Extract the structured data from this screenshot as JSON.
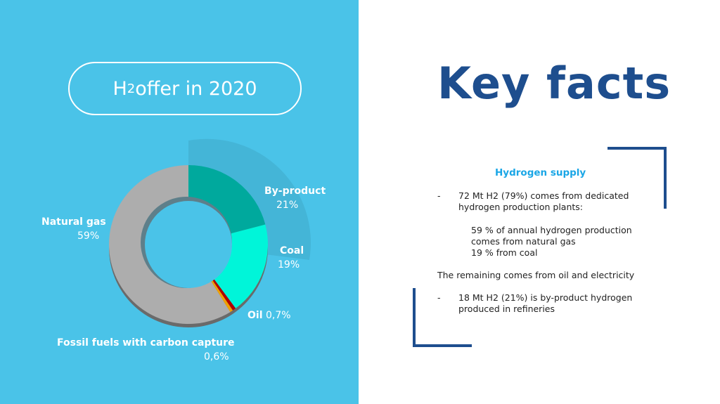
{
  "left": {
    "title_main": "H",
    "title_sub": "2",
    "title_rest": " offer in 2020"
  },
  "chart_data": {
    "type": "pie",
    "donut": true,
    "title": "H2 offer in 2020",
    "categories": [
      "By-product",
      "Coal",
      "Oil",
      "Fossil fuels with carbon capture",
      "Natural gas"
    ],
    "values": [
      21,
      19,
      0.7,
      0.6,
      59
    ],
    "value_labels": [
      "21%",
      "19%",
      "0,7%",
      "0,6%",
      "59%"
    ],
    "colors": [
      "#00a99d",
      "#00f5d9",
      "#b00000",
      "#f0a000",
      "#adadad"
    ]
  },
  "right": {
    "title": "Key facts",
    "subtitle": "Hydrogen supply",
    "bullet1_dash": "-",
    "bullet1_l1": "72 Mt H2 (79%) comes from dedicated",
    "bullet1_l2": "hydrogen production plants:",
    "sub1": "59 % of annual hydrogen production",
    "sub2": "comes from natural gas",
    "sub3": "19 % from coal",
    "remaining": "The remaining comes from oil and electricity",
    "bullet2_dash": "-",
    "bullet2_l1": "18 Mt H2  (21%) is by-product hydrogen",
    "bullet2_l2": "produced in refineries"
  }
}
